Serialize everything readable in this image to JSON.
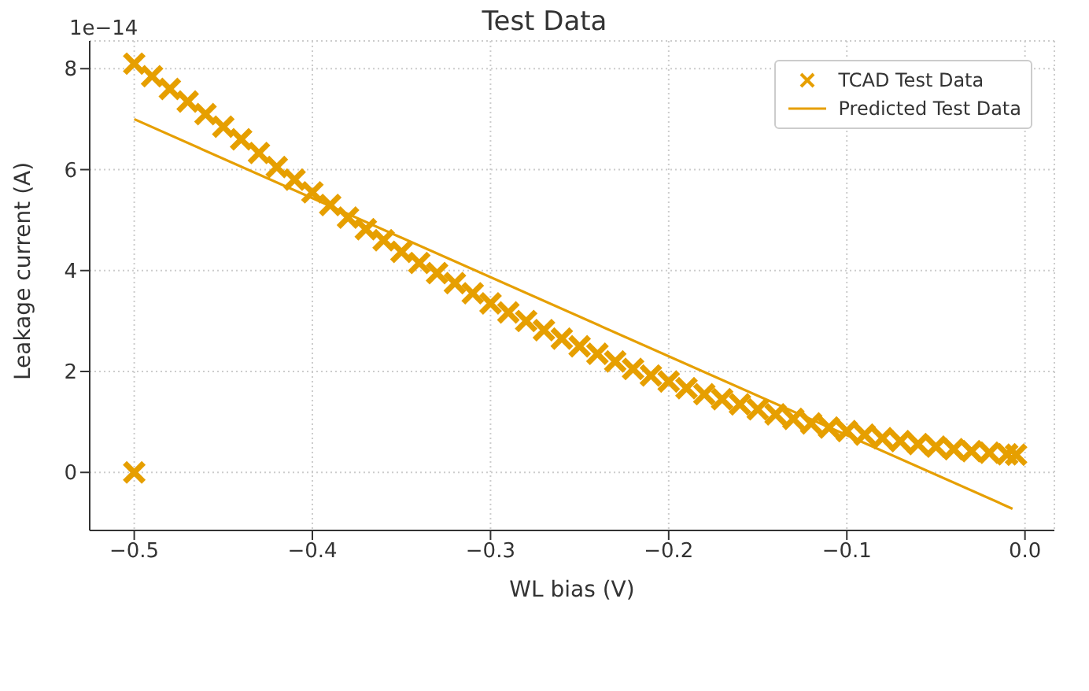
{
  "chart_data": {
    "type": "scatter",
    "title": "Test Data",
    "xlabel": "WL bias (V)",
    "ylabel": "Leakage current (A)",
    "annotations": [
      "1e−14"
    ],
    "xlim": [
      -0.525,
      0.0165
    ],
    "ylim": [
      -1.15,
      8.55
    ],
    "xticks": [
      {
        "value": -0.5,
        "label": "−0.5"
      },
      {
        "value": -0.4,
        "label": "−0.4"
      },
      {
        "value": -0.3,
        "label": "−0.3"
      },
      {
        "value": -0.2,
        "label": "−0.2"
      },
      {
        "value": -0.1,
        "label": "−0.1"
      },
      {
        "value": 0,
        "label": "0.0"
      }
    ],
    "yticks": [
      0,
      2,
      4,
      6,
      8
    ],
    "grid": true,
    "legend": "top right",
    "series": [
      {
        "name": "TCAD Test Data",
        "marker": "cross",
        "color": "#e69f00",
        "x": [
          -0.5,
          -0.5,
          -0.49,
          -0.48,
          -0.47,
          -0.46,
          -0.45,
          -0.44,
          -0.43,
          -0.42,
          -0.41,
          -0.4,
          -0.39,
          -0.38,
          -0.37,
          -0.36,
          -0.35,
          -0.34,
          -0.33,
          -0.32,
          -0.31,
          -0.3,
          -0.29,
          -0.28,
          -0.27,
          -0.26,
          -0.25,
          -0.24,
          -0.23,
          -0.22,
          -0.21,
          -0.2,
          -0.19,
          -0.18,
          -0.17,
          -0.16,
          -0.15,
          -0.14,
          -0.13,
          -0.12,
          -0.11,
          -0.1,
          -0.09,
          -0.08,
          -0.07,
          -0.06,
          -0.05,
          -0.04,
          -0.03,
          -0.02,
          -0.01,
          -0.005
        ],
        "values": [
          0,
          8.1,
          7.85,
          7.6,
          7.35,
          7.1,
          6.85,
          6.6,
          6.33,
          6.05,
          5.8,
          5.55,
          5.3,
          5.05,
          4.82,
          4.6,
          4.37,
          4.15,
          3.95,
          3.75,
          3.55,
          3.35,
          3.17,
          3.0,
          2.82,
          2.65,
          2.5,
          2.35,
          2.2,
          2.05,
          1.92,
          1.8,
          1.67,
          1.55,
          1.45,
          1.35,
          1.25,
          1.15,
          1.06,
          0.97,
          0.89,
          0.82,
          0.75,
          0.68,
          0.62,
          0.56,
          0.51,
          0.46,
          0.42,
          0.39,
          0.36,
          0.35
        ]
      },
      {
        "name": "Predicted Test Data",
        "type": "line",
        "marker": "none",
        "color": "#e69f00",
        "x": [
          -0.5,
          -0.007
        ],
        "values": [
          7.0,
          -0.72
        ]
      }
    ]
  }
}
